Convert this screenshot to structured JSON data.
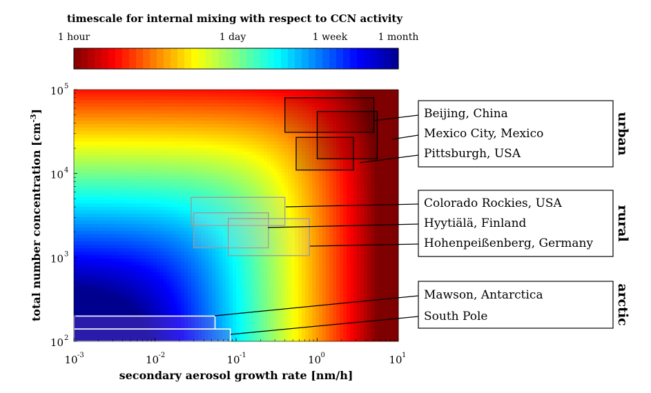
{
  "colorbar": {
    "title": "timescale for internal mixing with respect to CCN activity",
    "tick_labels": [
      "1 hour",
      "1 day",
      "1 week",
      "1 month"
    ],
    "colormap": "jet_reversed",
    "stops": [
      "#7f0000",
      "#ff0000",
      "#ff8000",
      "#ffff00",
      "#80ff80",
      "#00ffff",
      "#0080ff",
      "#0000ff",
      "#00008f"
    ]
  },
  "chart_data": {
    "type": "heatmap",
    "xlabel": "secondary aerosol growth rate [nm/h]",
    "ylabel_main": "total number concentration [cm",
    "ylabel_exp": "-3",
    "ylabel_close": "]",
    "x_scale": "log",
    "y_scale": "log",
    "xlim": [
      0.001,
      10
    ],
    "ylim": [
      100,
      100000
    ],
    "x_ticks": [
      {
        "value": 0.001,
        "base": "10",
        "exp": "-3"
      },
      {
        "value": 0.01,
        "base": "10",
        "exp": "-2"
      },
      {
        "value": 0.1,
        "base": "10",
        "exp": "-1"
      },
      {
        "value": 1,
        "base": "10",
        "exp": "0"
      },
      {
        "value": 10,
        "base": "10",
        "exp": "1"
      }
    ],
    "y_ticks": [
      {
        "value": 100,
        "base": "10",
        "exp": "2"
      },
      {
        "value": 1000,
        "base": "10",
        "exp": "3"
      },
      {
        "value": 10000,
        "base": "10",
        "exp": "4"
      },
      {
        "value": 100000,
        "base": "10",
        "exp": "5"
      }
    ],
    "sites": [
      {
        "name": "Beijing, China",
        "group": "urban",
        "x_range": [
          0.4,
          5
        ],
        "y_range": [
          31000,
          80000
        ],
        "box_color": "#000000"
      },
      {
        "name": "Mexico City, Mexico",
        "group": "urban",
        "x_range": [
          1,
          5.5
        ],
        "y_range": [
          15000,
          55000
        ],
        "box_color": "#000000"
      },
      {
        "name": "Pittsburgh, USA",
        "group": "urban",
        "x_range": [
          0.55,
          2.8
        ],
        "y_range": [
          11000,
          27000
        ],
        "box_color": "#000000"
      },
      {
        "name": "Colorado Rockies, USA",
        "group": "rural",
        "x_range": [
          0.028,
          0.4
        ],
        "y_range": [
          2400,
          5200
        ],
        "box_color": "#999999"
      },
      {
        "name": "Hyytiälä, Finland",
        "group": "rural",
        "x_range": [
          0.03,
          0.25
        ],
        "y_range": [
          1300,
          3400
        ],
        "box_color": "#999999"
      },
      {
        "name": "Hohenpeißenberg, Germany",
        "group": "rural",
        "x_range": [
          0.08,
          0.8
        ],
        "y_range": [
          1050,
          2900
        ],
        "box_color": "#999999"
      },
      {
        "name": "Mawson, Antarctica",
        "group": "arctic",
        "x_range": [
          0.001,
          0.055
        ],
        "y_range": [
          140,
          200
        ],
        "box_color": "#ffffff"
      },
      {
        "name": "South Pole",
        "group": "arctic",
        "x_range": [
          0.001,
          0.085
        ],
        "y_range": [
          100,
          140
        ],
        "box_color": "#ffffff"
      }
    ],
    "groups": [
      "urban",
      "rural",
      "arctic"
    ]
  }
}
